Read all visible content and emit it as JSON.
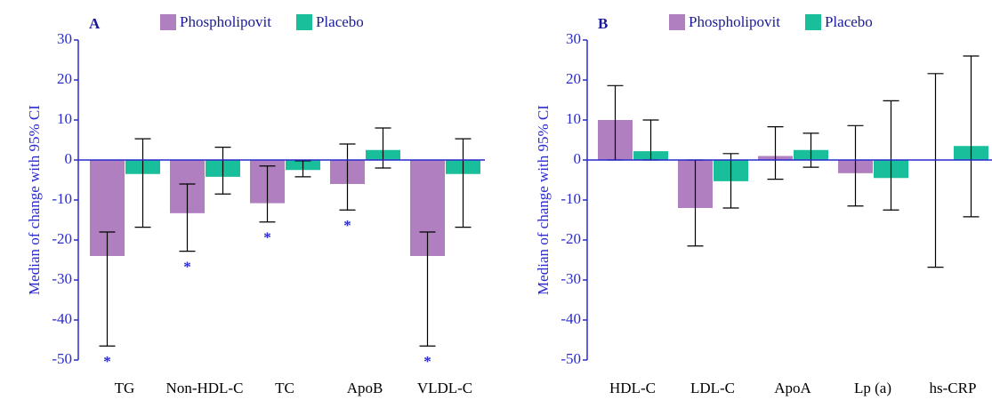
{
  "chart_data": [
    {
      "type": "bar",
      "panel_label": "A",
      "y_label": "Median of change with  95% CI",
      "categories": [
        "TG",
        "Non-HDL-C",
        "TC",
        "ApoB",
        "VLDL-C"
      ],
      "series": [
        {
          "name": "Phospholipovit",
          "color": "#b07fc0",
          "values": [
            -24,
            -13.3,
            -10.8,
            -6,
            -24
          ],
          "ci_low": [
            -46.5,
            -22.8,
            -15.5,
            -12.5,
            -46.5
          ],
          "ci_high": [
            -18,
            -6,
            -1.5,
            4,
            -18
          ],
          "significance": [
            "*",
            "*",
            "*",
            "*",
            "*"
          ]
        },
        {
          "name": "Placebo",
          "color": "#19be9a",
          "values": [
            -3.5,
            -4.2,
            -2.5,
            2.5,
            -3.5
          ],
          "ci_low": [
            -16.8,
            -8.5,
            -4.2,
            -2,
            -16.8
          ],
          "ci_high": [
            5.3,
            3.2,
            -0.2,
            8,
            5.3
          ]
        }
      ],
      "ylim": [
        -50,
        30
      ],
      "yticks": [
        -50,
        -40,
        -30,
        -20,
        -10,
        0,
        10,
        20,
        30
      ]
    },
    {
      "type": "bar",
      "panel_label": "B",
      "y_label": "Median of change with  95% CI",
      "categories": [
        "HDL-C",
        "LDL-C",
        "ApoA",
        "Lp (a)",
        "hs-CRP"
      ],
      "series": [
        {
          "name": "Phospholipovit",
          "color": "#b07fc0",
          "values": [
            10,
            -12,
            1,
            -3.3,
            0
          ],
          "ci_low": [
            0,
            -21.5,
            -4.8,
            -11.5,
            -26.8
          ],
          "ci_high": [
            18.6,
            0,
            8.3,
            8.6,
            21.6
          ]
        },
        {
          "name": "Placebo",
          "color": "#19be9a",
          "values": [
            2.2,
            -5.3,
            2.5,
            -4.5,
            3.5
          ],
          "ci_low": [
            0,
            -12,
            -1.8,
            -12.5,
            -14.2
          ],
          "ci_high": [
            10,
            1.6,
            6.7,
            14.8,
            26
          ]
        }
      ],
      "ylim": [
        -50,
        30
      ],
      "yticks": [
        -50,
        -40,
        -30,
        -20,
        -10,
        0,
        10,
        20,
        30
      ]
    }
  ]
}
